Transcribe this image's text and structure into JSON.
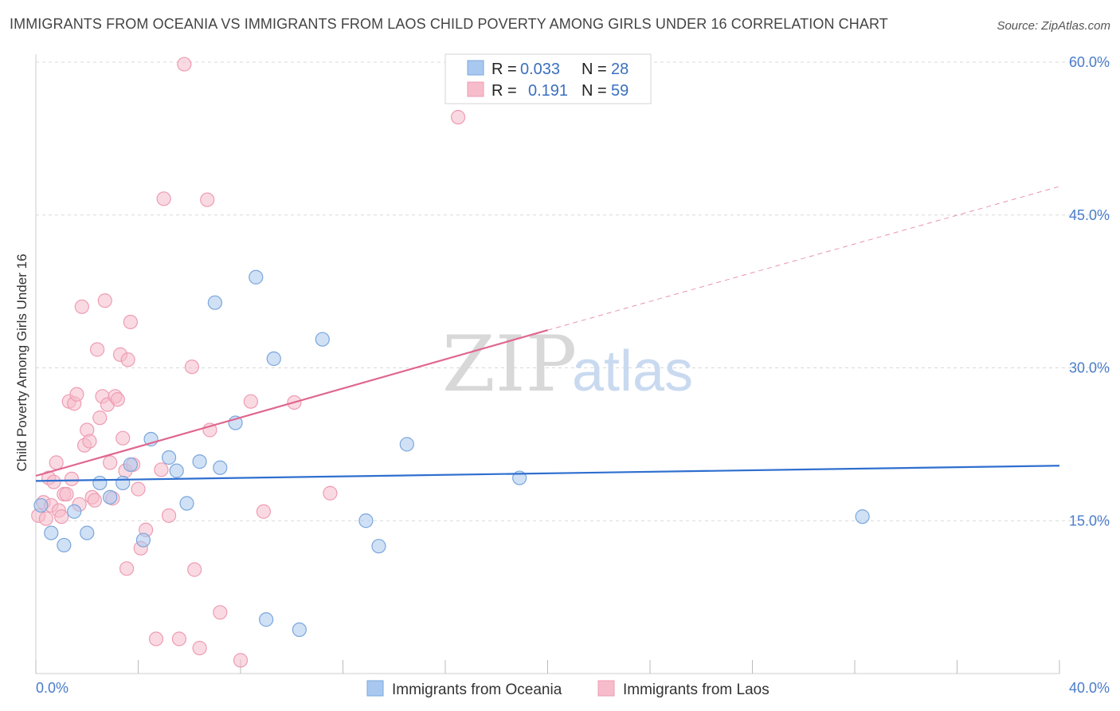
{
  "title": "IMMIGRANTS FROM OCEANIA VS IMMIGRANTS FROM LAOS CHILD POVERTY AMONG GIRLS UNDER 16 CORRELATION CHART",
  "source": "Source: ZipAtlas.com",
  "watermark": {
    "zip": "ZIP",
    "atlas": "atlas"
  },
  "colors": {
    "oceania_fill": "#a9c8ef",
    "oceania_stroke": "#7aa6dc",
    "oceania_line": "#2f6fcf",
    "laos_fill": "#f6bccb",
    "laos_stroke": "#ee9cb2",
    "laos_line": "#e0668e",
    "grid": "#d9d9d9",
    "tick_text": "#4a7cc9"
  },
  "legend": {
    "rows": [
      {
        "r_label": "R =",
        "r_value": "0.033",
        "n_label": "N =",
        "n_value": "28"
      },
      {
        "r_label": "R =",
        "r_value": "0.191",
        "n_label": "N =",
        "n_value": "59"
      }
    ]
  },
  "chart_data": {
    "type": "scatter",
    "title": "IMMIGRANTS FROM OCEANIA VS IMMIGRANTS FROM LAOS CHILD POVERTY AMONG GIRLS UNDER 16 CORRELATION CHART",
    "xlabel": "",
    "ylabel": "Child Poverty Among Girls Under 16",
    "xlim": [
      0,
      40
    ],
    "ylim": [
      0,
      60
    ],
    "x_tick_labels": [
      "0.0%",
      "40.0%"
    ],
    "y_ticks": [
      15,
      30,
      45,
      60
    ],
    "y_tick_labels": [
      "15.0%",
      "30.0%",
      "45.0%",
      "60.0%"
    ],
    "grid": true,
    "legend_placement": "top-center",
    "series": [
      {
        "name": "Immigrants from Oceania",
        "R": 0.033,
        "N": 28,
        "trend": {
          "x": [
            0,
            40
          ],
          "y": [
            18.9,
            20.4
          ]
        },
        "points": [
          [
            0.2,
            16.5
          ],
          [
            0.6,
            13.8
          ],
          [
            1.1,
            12.6
          ],
          [
            1.5,
            15.9
          ],
          [
            2.0,
            13.8
          ],
          [
            2.5,
            18.7
          ],
          [
            2.9,
            17.3
          ],
          [
            3.4,
            18.7
          ],
          [
            3.7,
            20.5
          ],
          [
            4.2,
            13.1
          ],
          [
            4.5,
            23.0
          ],
          [
            5.2,
            21.2
          ],
          [
            5.5,
            19.9
          ],
          [
            5.9,
            16.7
          ],
          [
            6.4,
            20.8
          ],
          [
            7.0,
            36.4
          ],
          [
            7.2,
            20.2
          ],
          [
            7.8,
            24.6
          ],
          [
            8.6,
            38.9
          ],
          [
            9.0,
            5.3
          ],
          [
            9.3,
            30.9
          ],
          [
            10.3,
            4.3
          ],
          [
            11.2,
            32.8
          ],
          [
            12.9,
            15.0
          ],
          [
            13.4,
            12.5
          ],
          [
            14.5,
            22.5
          ],
          [
            18.9,
            19.2
          ],
          [
            32.3,
            15.4
          ]
        ]
      },
      {
        "name": "Immigrants from Laos",
        "R": 0.191,
        "N": 59,
        "trend": {
          "x": [
            0,
            20
          ],
          "y": [
            19.4,
            33.7
          ]
        },
        "trend_dashed": {
          "x": [
            20,
            40
          ],
          "y": [
            33.7,
            47.8
          ]
        },
        "points": [
          [
            0.1,
            15.5
          ],
          [
            0.3,
            16.8
          ],
          [
            0.4,
            15.2
          ],
          [
            0.5,
            19.2
          ],
          [
            0.6,
            16.5
          ],
          [
            0.7,
            18.8
          ],
          [
            0.8,
            20.7
          ],
          [
            0.9,
            16.0
          ],
          [
            1.0,
            15.4
          ],
          [
            1.1,
            17.6
          ],
          [
            1.2,
            17.6
          ],
          [
            1.3,
            26.7
          ],
          [
            1.4,
            19.1
          ],
          [
            1.5,
            26.5
          ],
          [
            1.6,
            27.4
          ],
          [
            1.7,
            16.6
          ],
          [
            1.8,
            36.0
          ],
          [
            1.9,
            22.4
          ],
          [
            2.0,
            23.9
          ],
          [
            2.1,
            22.8
          ],
          [
            2.2,
            17.3
          ],
          [
            2.3,
            17.0
          ],
          [
            2.4,
            31.8
          ],
          [
            2.5,
            25.1
          ],
          [
            2.6,
            27.2
          ],
          [
            2.7,
            36.6
          ],
          [
            2.8,
            26.4
          ],
          [
            2.9,
            20.7
          ],
          [
            3.0,
            17.2
          ],
          [
            3.1,
            27.2
          ],
          [
            3.2,
            26.9
          ],
          [
            3.3,
            31.3
          ],
          [
            3.4,
            23.1
          ],
          [
            3.5,
            19.9
          ],
          [
            3.55,
            10.3
          ],
          [
            3.6,
            30.8
          ],
          [
            3.7,
            34.5
          ],
          [
            3.8,
            20.5
          ],
          [
            4.0,
            18.1
          ],
          [
            4.1,
            12.3
          ],
          [
            4.3,
            14.1
          ],
          [
            4.7,
            3.4
          ],
          [
            4.9,
            20.0
          ],
          [
            5.0,
            46.6
          ],
          [
            5.2,
            15.5
          ],
          [
            5.6,
            3.4
          ],
          [
            5.8,
            59.8
          ],
          [
            6.1,
            30.1
          ],
          [
            6.2,
            10.2
          ],
          [
            6.4,
            2.5
          ],
          [
            6.7,
            46.5
          ],
          [
            6.8,
            23.9
          ],
          [
            7.2,
            6.0
          ],
          [
            8.0,
            1.3
          ],
          [
            8.4,
            26.7
          ],
          [
            8.9,
            15.9
          ],
          [
            10.1,
            26.6
          ],
          [
            11.5,
            17.7
          ],
          [
            16.5,
            54.6
          ]
        ]
      }
    ]
  },
  "bottom_legend": {
    "oceania": "Immigrants from Oceania",
    "laos": "Immigrants from Laos"
  }
}
